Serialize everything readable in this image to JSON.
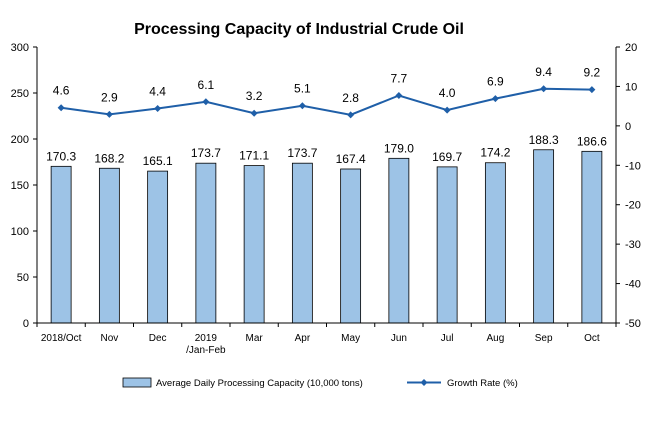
{
  "chart_data": {
    "type": "bar",
    "title": "Processing Capacity of Industrial Crude Oil",
    "categories": [
      [
        "2018/Oct"
      ],
      [
        "Nov"
      ],
      [
        "Dec"
      ],
      [
        "2019",
        "/Jan-Feb"
      ],
      [
        "Mar"
      ],
      [
        "Apr"
      ],
      [
        "May"
      ],
      [
        "Jun"
      ],
      [
        "Jul"
      ],
      [
        "Aug"
      ],
      [
        "Sep"
      ],
      [
        "Oct"
      ]
    ],
    "series": [
      {
        "name": "Average Daily Processing Capacity (10,000 tons)",
        "type": "bar",
        "axis": "left",
        "color": "#9DC3E6",
        "values": [
          170.3,
          168.2,
          165.1,
          173.7,
          171.1,
          173.7,
          167.4,
          179.0,
          169.7,
          174.2,
          188.3,
          186.6
        ],
        "labels": [
          "170.3",
          "168.2",
          "165.1",
          "173.7",
          "171.1",
          "173.7",
          "167.4",
          "179.0",
          "169.7",
          "174.2",
          "188.3",
          "186.6"
        ]
      },
      {
        "name": "Growth Rate (%)",
        "type": "line",
        "axis": "right",
        "color": "#1F5FA8",
        "values": [
          4.6,
          2.9,
          4.4,
          6.1,
          3.2,
          5.1,
          2.8,
          7.7,
          4.0,
          6.9,
          9.4,
          9.2
        ],
        "labels": [
          "4.6",
          "2.9",
          "4.4",
          "6.1",
          "3.2",
          "5.1",
          "2.8",
          "7.7",
          "4.0",
          "6.9",
          "9.4",
          "9.2"
        ]
      }
    ],
    "ylim_left": [
      0,
      300
    ],
    "yticks_left": [
      0,
      50,
      100,
      150,
      200,
      250,
      300
    ],
    "ylim_right": [
      -50,
      20
    ],
    "yticks_right": [
      -50,
      -40,
      -30,
      -20,
      -10,
      0,
      10,
      20
    ],
    "grid": false,
    "legend": "bottom"
  }
}
